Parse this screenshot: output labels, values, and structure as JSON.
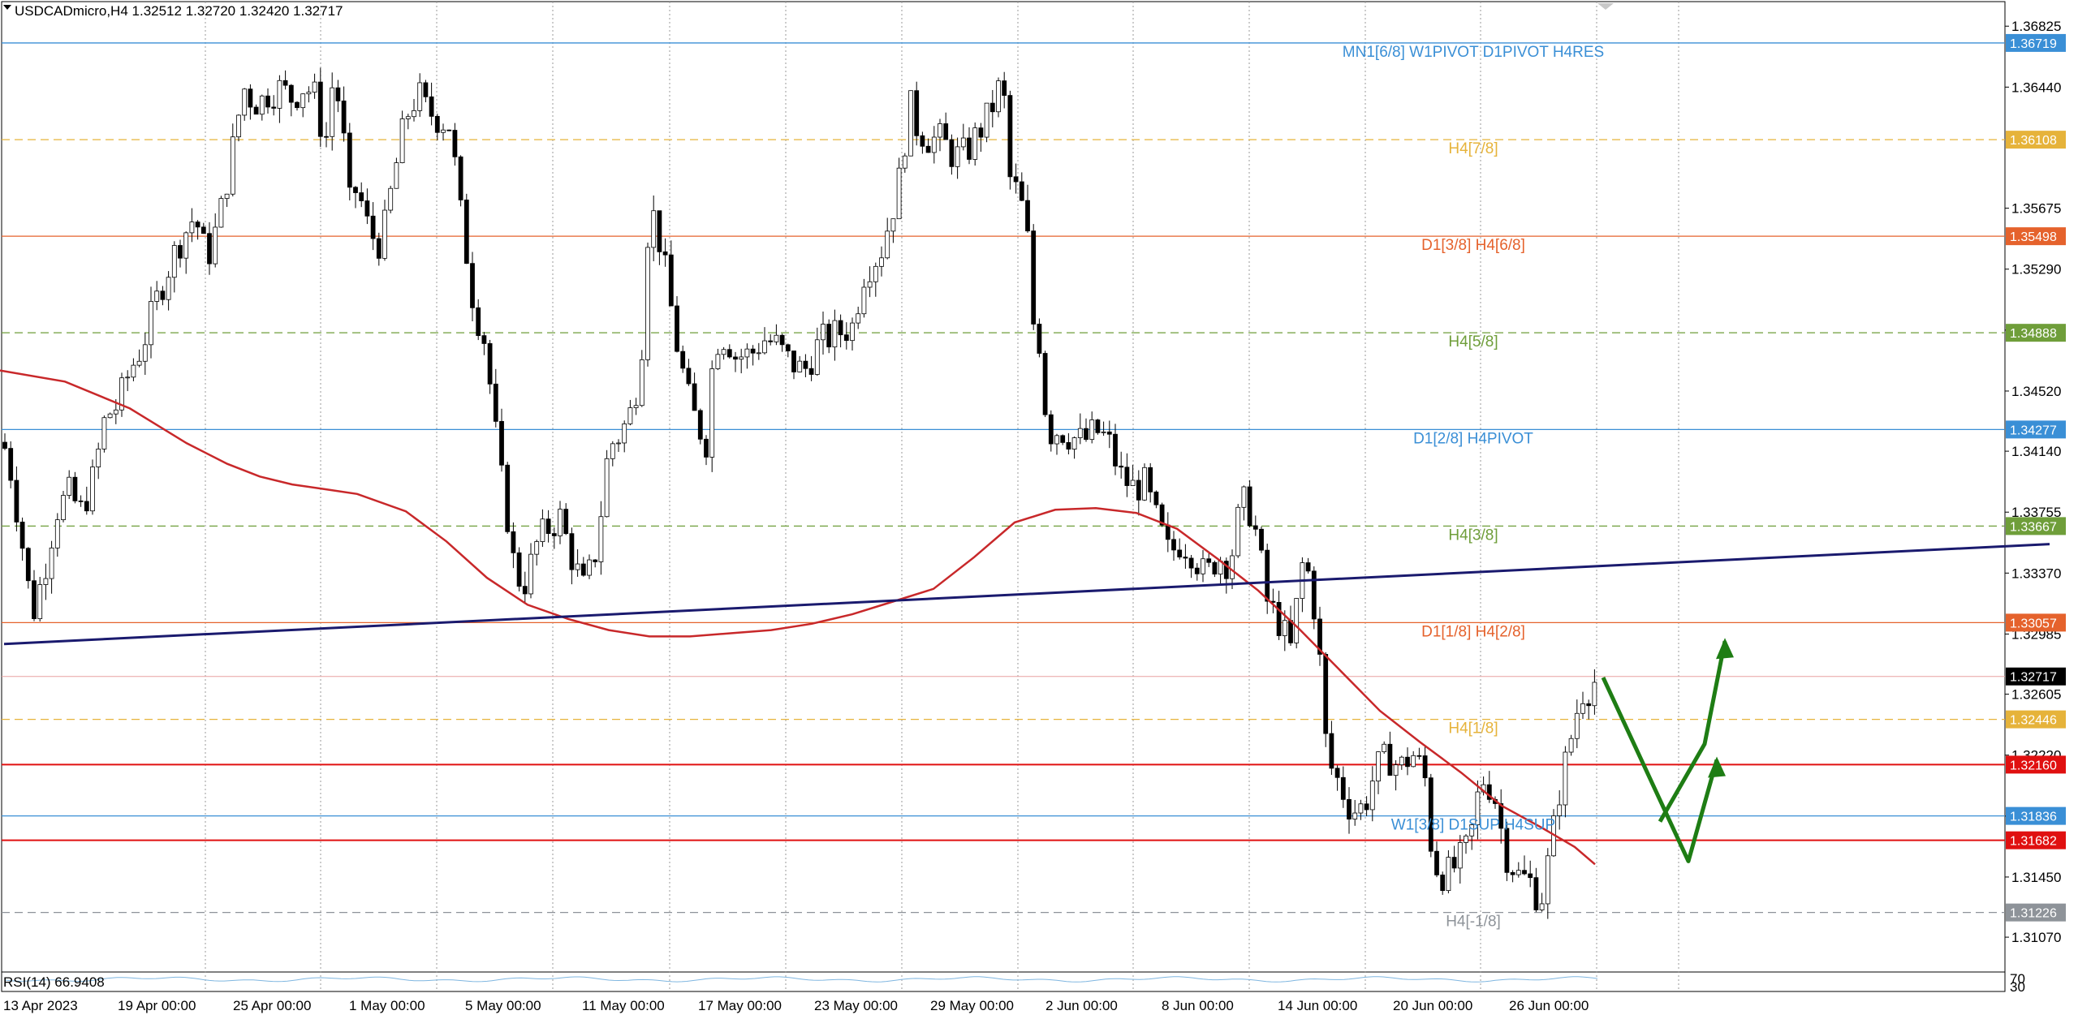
{
  "header": {
    "symbol_line": "USDCADmicro,H4  1.32512 1.32720 1.32420 1.32717"
  },
  "colors": {
    "bull": "#ffffff",
    "bear": "#000000",
    "wick": "#000000",
    "ma": "#c8282a",
    "trend": "#1a1a6e",
    "arrow": "#1e7d14",
    "grid": "#9a9a9a"
  },
  "price_axis": {
    "min": 1.3085,
    "max": 1.3698,
    "ticks": [
      "1.36825",
      "1.36440",
      "1.35675",
      "1.35290",
      "1.34905",
      "1.34520",
      "1.34140",
      "1.33755",
      "1.33370",
      "1.32985",
      "1.32605",
      "1.32220",
      "1.31835",
      "1.31450",
      "1.31070"
    ]
  },
  "time_axis": {
    "labels": [
      "13 Apr 2023",
      "19 Apr 00:00",
      "25 Apr 00:00",
      "1 May 00:00",
      "5 May 00:00",
      "11 May 00:00",
      "17 May 00:00",
      "23 May 00:00",
      "29 May 00:00",
      "2 Jun 00:00",
      "8 Jun 00:00",
      "14 Jun 00:00",
      "20 Jun 00:00",
      "26 Jun 00:00"
    ]
  },
  "levels": [
    {
      "price": 1.36719,
      "tag": "1.36719",
      "label": "MN1[6/8] W1PIVOT D1PIVOT H4RES",
      "color": "#3a8fd6",
      "style": "solid"
    },
    {
      "price": 1.36108,
      "tag": "1.36108",
      "label": "H4[7/8]",
      "color": "#e6b33a",
      "style": "dash"
    },
    {
      "price": 1.35498,
      "tag": "1.35498",
      "label": "D1[3/8] H4[6/8]",
      "color": "#e5622c",
      "style": "solid"
    },
    {
      "price": 1.34888,
      "tag": "1.34888",
      "label": "H4[5/8]",
      "color": "#6f9e3a",
      "style": "dash"
    },
    {
      "price": 1.34277,
      "tag": "1.34277",
      "label": "D1[2/8] H4PIVOT",
      "color": "#3a8fd6",
      "style": "solid"
    },
    {
      "price": 1.33667,
      "tag": "1.33667",
      "label": "H4[3/8]",
      "color": "#6f9e3a",
      "style": "dash"
    },
    {
      "price": 1.33057,
      "tag": "1.33057",
      "label": "D1[1/8] H4[2/8]",
      "color": "#e5622c",
      "style": "solid"
    },
    {
      "price": 1.32446,
      "tag": "1.32446",
      "label": "H4[1/8]",
      "color": "#e6b33a",
      "style": "dash"
    },
    {
      "price": 1.3216,
      "tag": "1.32160",
      "label": "",
      "color": "#e01010",
      "style": "solid"
    },
    {
      "price": 1.31836,
      "tag": "1.31836",
      "label": "W1[3/8] D1SUP H4SUP",
      "color": "#3a8fd6",
      "style": "solid"
    },
    {
      "price": 1.31682,
      "tag": "1.31682",
      "label": "",
      "color": "#e01010",
      "style": "solid"
    },
    {
      "price": 1.31226,
      "tag": "1.31226",
      "label": "H4[-1/8]",
      "color": "#8e9399",
      "style": "dash"
    }
  ],
  "current_price": {
    "price": 1.32717,
    "tag": "1.32717"
  },
  "ma": [
    [
      0,
      1.3465
    ],
    [
      80,
      1.3458
    ],
    [
      160,
      1.3441
    ],
    [
      230,
      1.3419
    ],
    [
      280,
      1.3406
    ],
    [
      320,
      1.3398
    ],
    [
      360,
      1.3393
    ],
    [
      400,
      1.339
    ],
    [
      440,
      1.3387
    ],
    [
      500,
      1.3376
    ],
    [
      550,
      1.3357
    ],
    [
      600,
      1.3334
    ],
    [
      650,
      1.3317
    ],
    [
      700,
      1.3308
    ],
    [
      750,
      1.3301
    ],
    [
      800,
      1.3297
    ],
    [
      850,
      1.3297
    ],
    [
      900,
      1.3299
    ],
    [
      950,
      1.3301
    ],
    [
      1000,
      1.3305
    ],
    [
      1050,
      1.3311
    ],
    [
      1100,
      1.3319
    ],
    [
      1150,
      1.3327
    ],
    [
      1200,
      1.3347
    ],
    [
      1250,
      1.3369
    ],
    [
      1300,
      1.3377
    ],
    [
      1350,
      1.3378
    ],
    [
      1400,
      1.3375
    ],
    [
      1450,
      1.3365
    ],
    [
      1500,
      1.3346
    ],
    [
      1550,
      1.3326
    ],
    [
      1600,
      1.3302
    ],
    [
      1650,
      1.3276
    ],
    [
      1700,
      1.325
    ],
    [
      1750,
      1.323
    ],
    [
      1800,
      1.3211
    ],
    [
      1850,
      1.319
    ],
    [
      1900,
      1.3176
    ],
    [
      1940,
      1.3164
    ],
    [
      1965,
      1.3153
    ]
  ],
  "trendline": [
    [
      5,
      1.32922
    ],
    [
      2525,
      1.33553
    ]
  ],
  "arrows": [
    [
      [
        1975,
        1.3271
      ],
      [
        2045,
        1.3179
      ],
      [
        2080,
        1.3155
      ],
      [
        2115,
        1.3219
      ],
      [
        2145,
        1.329
      ],
      [
        2078,
        1.3156
      ]
    ],
    [
      [
        2045,
        1.318
      ],
      [
        2074,
        1.3155
      ],
      [
        2100,
        1.3229
      ],
      [
        2125,
        1.3294
      ],
      [
        2153,
        1.3237
      ],
      [
        2175,
        1.3288
      ]
    ]
  ],
  "price_path": [
    [
      0,
      1.3427
    ],
    [
      12,
      1.3405
    ],
    [
      25,
      1.3364
    ],
    [
      40,
      1.331
    ],
    [
      55,
      1.334
    ],
    [
      70,
      1.3377
    ],
    [
      85,
      1.3387
    ],
    [
      100,
      1.3376
    ],
    [
      115,
      1.3397
    ],
    [
      130,
      1.3436
    ],
    [
      145,
      1.3443
    ],
    [
      160,
      1.3465
    ],
    [
      175,
      1.348
    ],
    [
      190,
      1.3505
    ],
    [
      205,
      1.3527
    ],
    [
      220,
      1.3545
    ],
    [
      240,
      1.3563
    ],
    [
      255,
      1.3535
    ],
    [
      270,
      1.356
    ],
    [
      285,
      1.36
    ],
    [
      300,
      1.3644
    ],
    [
      310,
      1.3636
    ],
    [
      320,
      1.3634
    ],
    [
      330,
      1.364
    ],
    [
      345,
      1.3643
    ],
    [
      360,
      1.3637
    ],
    [
      375,
      1.3645
    ],
    [
      390,
      1.3637
    ],
    [
      400,
      1.3604
    ],
    [
      410,
      1.3648
    ],
    [
      420,
      1.3631
    ],
    [
      430,
      1.3569
    ],
    [
      440,
      1.3581
    ],
    [
      455,
      1.3552
    ],
    [
      470,
      1.3544
    ],
    [
      485,
      1.3587
    ],
    [
      500,
      1.3625
    ],
    [
      515,
      1.364
    ],
    [
      525,
      1.363
    ],
    [
      540,
      1.3624
    ],
    [
      555,
      1.362
    ],
    [
      565,
      1.3573
    ],
    [
      575,
      1.3538
    ],
    [
      585,
      1.3502
    ],
    [
      595,
      1.3491
    ],
    [
      605,
      1.3451
    ],
    [
      615,
      1.3405
    ],
    [
      625,
      1.3373
    ],
    [
      635,
      1.3335
    ],
    [
      648,
      1.3331
    ],
    [
      660,
      1.3354
    ],
    [
      672,
      1.3364
    ],
    [
      690,
      1.3372
    ],
    [
      705,
      1.3346
    ],
    [
      720,
      1.3326
    ],
    [
      735,
      1.3353
    ],
    [
      750,
      1.3417
    ],
    [
      765,
      1.3425
    ],
    [
      780,
      1.3442
    ],
    [
      790,
      1.3475
    ],
    [
      800,
      1.3571
    ],
    [
      810,
      1.3554
    ],
    [
      820,
      1.3526
    ],
    [
      835,
      1.3478
    ],
    [
      850,
      1.3443
    ],
    [
      860,
      1.343
    ],
    [
      870,
      1.342
    ],
    [
      880,
      1.3483
    ],
    [
      895,
      1.3487
    ],
    [
      905,
      1.3474
    ],
    [
      925,
      1.3475
    ],
    [
      940,
      1.3485
    ],
    [
      955,
      1.3482
    ],
    [
      970,
      1.3472
    ],
    [
      990,
      1.3464
    ],
    [
      1010,
      1.3483
    ],
    [
      1030,
      1.3488
    ],
    [
      1050,
      1.3493
    ],
    [
      1065,
      1.3528
    ],
    [
      1085,
      1.354
    ],
    [
      1100,
      1.3568
    ],
    [
      1110,
      1.359
    ],
    [
      1120,
      1.3634
    ],
    [
      1130,
      1.3618
    ],
    [
      1145,
      1.3611
    ],
    [
      1160,
      1.3611
    ],
    [
      1175,
      1.36
    ],
    [
      1190,
      1.3602
    ],
    [
      1205,
      1.3615
    ],
    [
      1218,
      1.3626
    ],
    [
      1235,
      1.3649
    ],
    [
      1245,
      1.3582
    ],
    [
      1255,
      1.3577
    ],
    [
      1265,
      1.3554
    ],
    [
      1275,
      1.3482
    ],
    [
      1282,
      1.3484
    ],
    [
      1290,
      1.3425
    ],
    [
      1305,
      1.3428
    ],
    [
      1320,
      1.3423
    ],
    [
      1335,
      1.342
    ],
    [
      1350,
      1.3427
    ],
    [
      1365,
      1.3421
    ],
    [
      1380,
      1.3399
    ],
    [
      1395,
      1.3391
    ],
    [
      1410,
      1.3393
    ],
    [
      1425,
      1.337
    ],
    [
      1440,
      1.3349
    ],
    [
      1455,
      1.3357
    ],
    [
      1470,
      1.335
    ],
    [
      1485,
      1.3334
    ],
    [
      1500,
      1.3348
    ],
    [
      1515,
      1.3343
    ],
    [
      1525,
      1.337
    ],
    [
      1535,
      1.3385
    ],
    [
      1550,
      1.3357
    ],
    [
      1560,
      1.332
    ],
    [
      1575,
      1.3307
    ],
    [
      1590,
      1.3289
    ],
    [
      1605,
      1.3344
    ],
    [
      1615,
      1.3333
    ],
    [
      1625,
      1.3288
    ],
    [
      1635,
      1.3219
    ],
    [
      1650,
      1.3204
    ],
    [
      1665,
      1.3187
    ],
    [
      1680,
      1.3189
    ],
    [
      1695,
      1.3213
    ],
    [
      1710,
      1.3221
    ],
    [
      1725,
      1.3214
    ],
    [
      1740,
      1.3223
    ],
    [
      1755,
      1.321
    ],
    [
      1765,
      1.3155
    ],
    [
      1780,
      1.3145
    ],
    [
      1795,
      1.3153
    ],
    [
      1810,
      1.3165
    ],
    [
      1825,
      1.3208
    ],
    [
      1840,
      1.32
    ],
    [
      1855,
      1.316
    ],
    [
      1870,
      1.3146
    ],
    [
      1885,
      1.3142
    ],
    [
      1898,
      1.3129
    ],
    [
      1910,
      1.3162
    ],
    [
      1922,
      1.3202
    ],
    [
      1935,
      1.3232
    ],
    [
      1948,
      1.3262
    ],
    [
      1958,
      1.3264
    ],
    [
      1968,
      1.3271
    ]
  ],
  "rsi": {
    "label": "RSI(14) 66.9408",
    "scale_top": "70",
    "scale_bottom": "30"
  }
}
